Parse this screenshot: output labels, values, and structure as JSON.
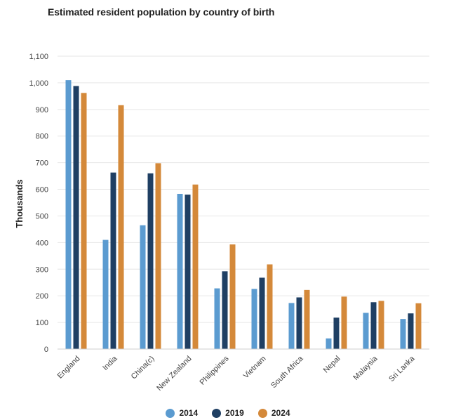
{
  "chart_data": {
    "type": "bar",
    "title": "Estimated resident population by country of birth",
    "xlabel": "",
    "ylabel": "Thousands",
    "ylim": [
      0,
      1100
    ],
    "yticks": [
      0,
      100,
      200,
      300,
      400,
      500,
      600,
      700,
      800,
      900,
      1000,
      1100
    ],
    "ytick_labels": [
      "0",
      "100",
      "200",
      "300",
      "400",
      "500",
      "600",
      "700",
      "800",
      "900",
      "1,000",
      "1,100"
    ],
    "grid": true,
    "legend_position": "bottom",
    "categories": [
      "England",
      "India",
      "China(c)",
      "New Zealand",
      "Philippines",
      "Vietnam",
      "South Africa",
      "Nepal",
      "Malaysia",
      "Sri Lanka"
    ],
    "series": [
      {
        "name": "2014",
        "color": "#5b9bd0",
        "values": [
          1010,
          410,
          465,
          583,
          228,
          226,
          173,
          40,
          136,
          113
        ]
      },
      {
        "name": "2019",
        "color": "#1f3f63",
        "values": [
          988,
          663,
          660,
          580,
          292,
          268,
          194,
          118,
          176,
          134
        ]
      },
      {
        "name": "2024",
        "color": "#d4893a",
        "values": [
          962,
          916,
          698,
          618,
          393,
          318,
          222,
          197,
          181,
          172
        ]
      }
    ]
  }
}
